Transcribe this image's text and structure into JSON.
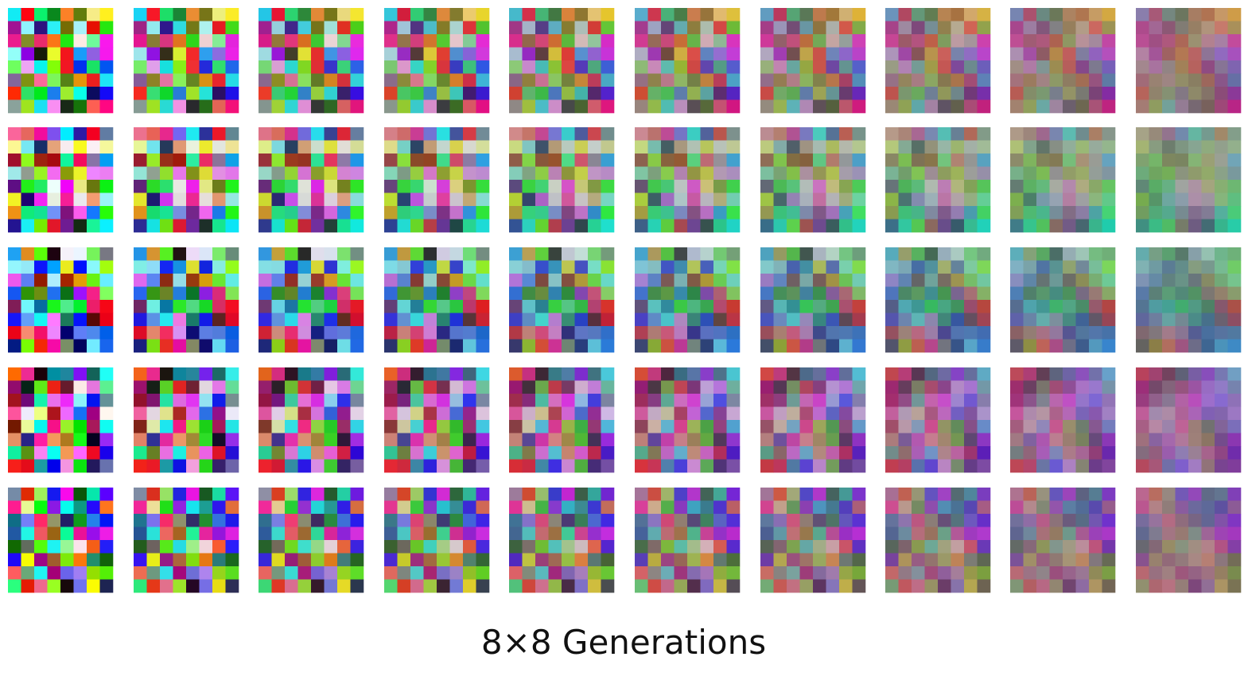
{
  "caption": "8×8 Generations"
}
